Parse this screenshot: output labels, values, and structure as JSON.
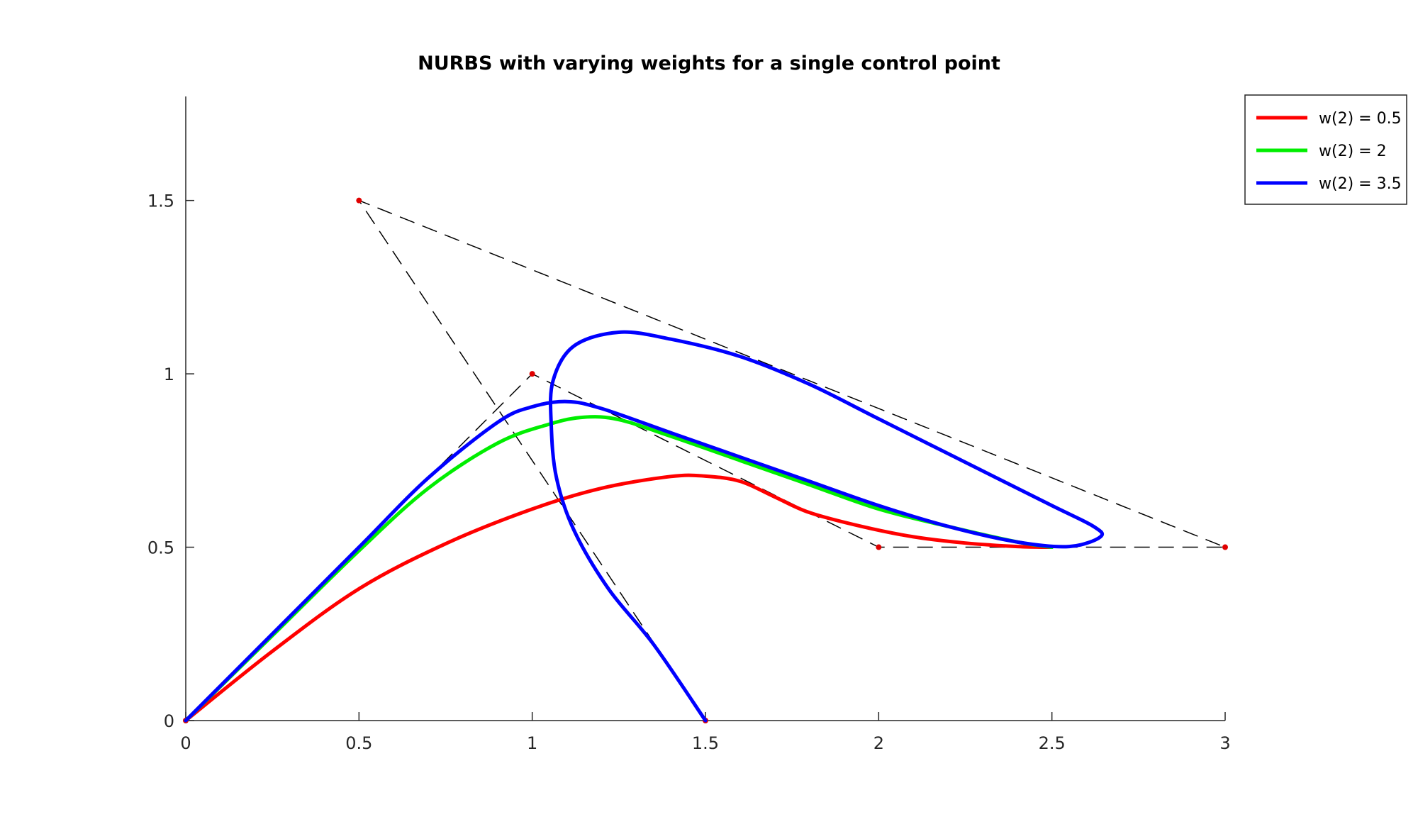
{
  "chart_data": {
    "type": "line",
    "title": "NURBS with varying weights for a single control point",
    "xlabel": "",
    "ylabel": "",
    "xlim": [
      0,
      3
    ],
    "ylim": [
      0,
      1.8
    ],
    "xticks": [
      0,
      0.5,
      1,
      1.5,
      2,
      2.5,
      3
    ],
    "xtick_labels": [
      "0",
      "0.5",
      "1",
      "1.5",
      "2",
      "2.5",
      "3"
    ],
    "yticks": [
      0,
      0.5,
      1,
      1.5
    ],
    "ytick_labels": [
      "0",
      "0.5",
      "1",
      "1.5"
    ],
    "grid": false,
    "legend_position": "top-right",
    "control_polygons": [
      {
        "points": [
          [
            0,
            0
          ],
          [
            1,
            1
          ],
          [
            2,
            0.5
          ],
          [
            3,
            0.5
          ],
          [
            0.5,
            1.5
          ],
          [
            1.5,
            0
          ]
        ],
        "style": "dashed",
        "color": "#000000",
        "marker_color": "#e00000"
      }
    ],
    "series": [
      {
        "name": "w(2) = 0.5",
        "color": "#ff0000",
        "x": [
          0,
          0.25,
          0.5,
          0.75,
          1.0,
          1.2,
          1.4,
          1.5,
          1.6,
          1.7,
          1.8,
          1.95,
          2.1,
          2.25,
          2.4,
          2.5
        ],
        "y": [
          0,
          0.2,
          0.38,
          0.51,
          0.61,
          0.67,
          0.704,
          0.705,
          0.69,
          0.645,
          0.6,
          0.56,
          0.53,
          0.512,
          0.502,
          0.5
        ]
      },
      {
        "name": "w(2) = 2",
        "color": "#00ee00",
        "x": [
          0,
          0.25,
          0.5,
          0.7,
          0.9,
          1.05,
          1.15,
          1.25,
          1.4,
          1.6,
          1.8,
          2.0,
          2.2,
          2.4,
          2.5
        ],
        "y": [
          0,
          0.245,
          0.49,
          0.67,
          0.8,
          0.855,
          0.875,
          0.868,
          0.82,
          0.75,
          0.68,
          0.61,
          0.56,
          0.515,
          0.5
        ]
      },
      {
        "name": "w(2) = 3.5",
        "color": "#0000ff",
        "x": [
          0,
          0.25,
          0.5,
          0.7,
          0.9,
          1.0,
          1.1,
          1.2,
          1.4,
          1.6,
          1.8,
          2.0,
          2.2,
          2.4,
          2.55,
          2.64,
          2.62,
          2.5,
          2.3,
          2.0,
          1.8,
          1.6,
          1.4,
          1.25,
          1.12,
          1.06,
          1.055,
          1.07,
          1.12,
          1.22,
          1.35,
          1.5
        ],
        "y": [
          0,
          0.25,
          0.5,
          0.7,
          0.86,
          0.905,
          0.92,
          0.9,
          0.83,
          0.76,
          0.69,
          0.62,
          0.56,
          0.515,
          0.502,
          0.53,
          0.56,
          0.62,
          0.72,
          0.87,
          0.97,
          1.05,
          1.1,
          1.12,
          1.08,
          0.98,
          0.85,
          0.7,
          0.55,
          0.38,
          0.22,
          0
        ]
      }
    ]
  }
}
